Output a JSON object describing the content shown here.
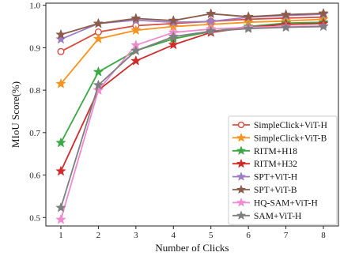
{
  "chart_data": {
    "type": "line",
    "xlabel": "Number of Clicks",
    "ylabel": "MIoU Score(%)",
    "x": [
      1,
      2,
      3,
      4,
      5,
      6,
      7,
      8
    ],
    "xlim": [
      0.6,
      8.4
    ],
    "ylim": [
      0.48,
      1.005
    ],
    "yticks": [
      "0.5",
      "0.6",
      "0.7",
      "0.8",
      "0.9",
      "1.0"
    ],
    "xticks": [
      "1",
      "2",
      "3",
      "4",
      "5",
      "6",
      "7",
      "8"
    ],
    "grid": false,
    "legend_position": "lower-right",
    "series": [
      {
        "name": "SimpleClick+ViT-H",
        "color": "#d94b3f",
        "marker": "circle-open",
        "values": [
          0.891,
          0.937,
          0.952,
          0.957,
          0.962,
          0.967,
          0.97,
          0.972
        ]
      },
      {
        "name": "SimpleClick+ViT-B",
        "color": "#f7931e",
        "marker": "star",
        "values": [
          0.815,
          0.921,
          0.941,
          0.95,
          0.955,
          0.96,
          0.963,
          0.967
        ]
      },
      {
        "name": "RITM+H18",
        "color": "#39a845",
        "marker": "star",
        "values": [
          0.676,
          0.843,
          0.893,
          0.921,
          0.938,
          0.95,
          0.958,
          0.96
        ]
      },
      {
        "name": "RITM+H32",
        "color": "#cf2b2b",
        "marker": "star",
        "values": [
          0.609,
          0.8,
          0.869,
          0.907,
          0.936,
          0.948,
          0.955,
          0.957
        ]
      },
      {
        "name": "SPT+ViT-H",
        "color": "#9c7cc4",
        "marker": "star",
        "values": [
          0.92,
          0.957,
          0.965,
          0.96,
          0.962,
          0.972,
          0.976,
          0.979
        ]
      },
      {
        "name": "SPT+ViT-B",
        "color": "#8c5b4a",
        "marker": "star",
        "values": [
          0.931,
          0.957,
          0.969,
          0.964,
          0.98,
          0.973,
          0.978,
          0.981
        ]
      },
      {
        "name": "HQ-SAM+ViT-H",
        "color": "#f08ad0",
        "marker": "star",
        "values": [
          0.495,
          0.8,
          0.906,
          0.936,
          0.944,
          0.948,
          0.95,
          0.951
        ]
      },
      {
        "name": "SAM+ViT-H",
        "color": "#7f7f7f",
        "marker": "star",
        "values": [
          0.523,
          0.812,
          0.893,
          0.926,
          0.939,
          0.945,
          0.948,
          0.95
        ]
      }
    ]
  }
}
